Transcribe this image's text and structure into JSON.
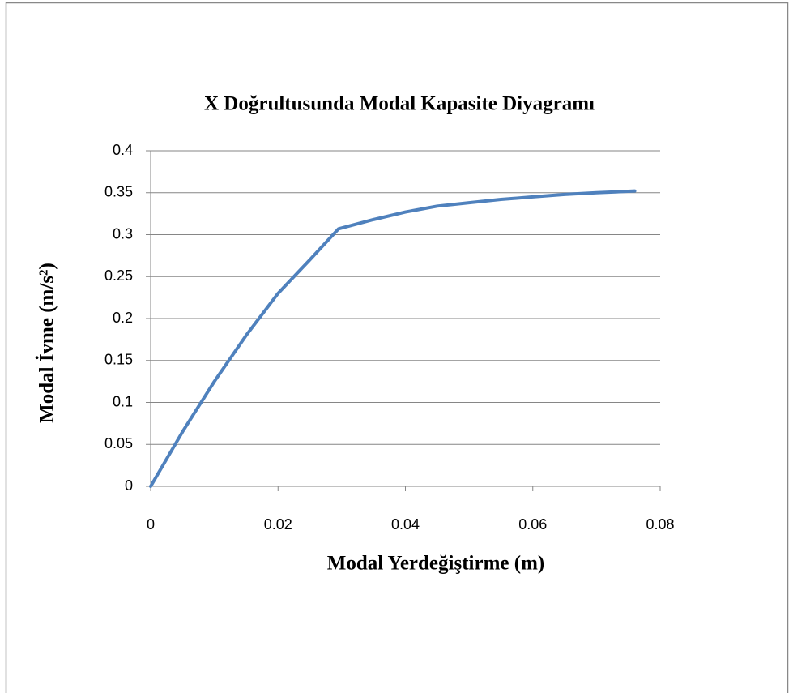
{
  "chart_data": {
    "type": "line",
    "title": "X Doğrultusunda Modal Kapasite Diyagramı",
    "x_label": "Modal Yerdeğiştirme (m)",
    "y_label": "Modal İvme (m/s²)",
    "x": [
      0,
      0.005,
      0.01,
      0.015,
      0.02,
      0.025,
      0.0295,
      0.035,
      0.04,
      0.045,
      0.05,
      0.055,
      0.06,
      0.065,
      0.07,
      0.076
    ],
    "series": [
      {
        "color": "#4f81bd",
        "values": [
          0,
          0.065,
          0.125,
          0.18,
          0.23,
          0.27,
          0.307,
          0.318,
          0.327,
          0.334,
          0.338,
          0.342,
          0.345,
          0.348,
          0.35,
          0.352
        ]
      }
    ],
    "xlim": [
      0,
      0.08
    ],
    "xticks": [
      0,
      0.02,
      0.04,
      0.06,
      0.08
    ],
    "ylim": [
      0,
      0.4
    ],
    "yticks": [
      0,
      0.05,
      0.1,
      0.15,
      0.2,
      0.25,
      0.3,
      0.35,
      0.4
    ],
    "grid": true
  }
}
